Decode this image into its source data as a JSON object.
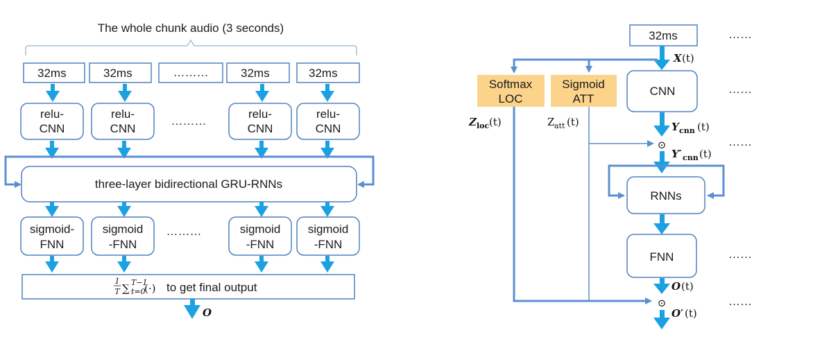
{
  "left": {
    "title": "The whole chunk audio (3 seconds)",
    "frames": [
      "32ms",
      "32ms",
      "32ms",
      "32ms"
    ],
    "frame_ellipsis": "………",
    "cnn_blocks": [
      {
        "line1": "relu-",
        "line2": "CNN"
      },
      {
        "line1": "relu-",
        "line2": "CNN"
      },
      {
        "line1": "relu-",
        "line2": "CNN"
      },
      {
        "line1": "relu-",
        "line2": "CNN"
      }
    ],
    "cnn_ellipsis": "………",
    "rnn_label": "three-layer bidirectional GRU-RNNs",
    "fnn_blocks": [
      {
        "line1": "sigmoid-",
        "line2": "FNN"
      },
      {
        "line1": "sigmoid",
        "line2": "-FNN"
      },
      {
        "line1": "sigmoid",
        "line2": "-FNN"
      },
      {
        "line1": "sigmoid",
        "line2": "-FNN"
      }
    ],
    "fnn_ellipsis": "………",
    "avg": {
      "frac_num": "1",
      "frac_den": "T",
      "sum_sym": "∑",
      "sum_sub": "t=0",
      "sum_sup": "T−1",
      "arg": "(·)",
      "text": "to get final output"
    },
    "output": "O"
  },
  "right": {
    "frame": "32ms",
    "input_label": {
      "main": "X",
      "rest": "(t)"
    },
    "softmax": {
      "line1": "Softmax",
      "line2": "LOC",
      "color": "#fcd38a"
    },
    "sigmoid": {
      "line1": "Sigmoid",
      "line2": "ATT",
      "color": "#fcd38a"
    },
    "cnn": "CNN",
    "rnns": "RNNs",
    "fnn": "FNN",
    "zloc": {
      "main": "Z",
      "sub": "loc",
      "rest": "(t)"
    },
    "zatt": {
      "main": "Z",
      "sub": "att",
      "rest": "(t)"
    },
    "ycnn": {
      "main": "Y",
      "sub": "cnn",
      "rest": "(t)"
    },
    "ycnn_prime": {
      "main": "Y′",
      "sub": "cnn",
      "rest": "(t)"
    },
    "o_label": {
      "main": "O",
      "rest": "(t)"
    },
    "o_prime_label": {
      "main": "O′",
      "rest": "(t)"
    },
    "odot": "⊙",
    "dots": [
      "……",
      "……",
      "……",
      "……",
      "……"
    ]
  },
  "colors": {
    "arrow": "#1ba1e2",
    "line": "#5b8fd0",
    "box_stroke": "#4f81bd",
    "orange_box": "#fcd38a"
  }
}
